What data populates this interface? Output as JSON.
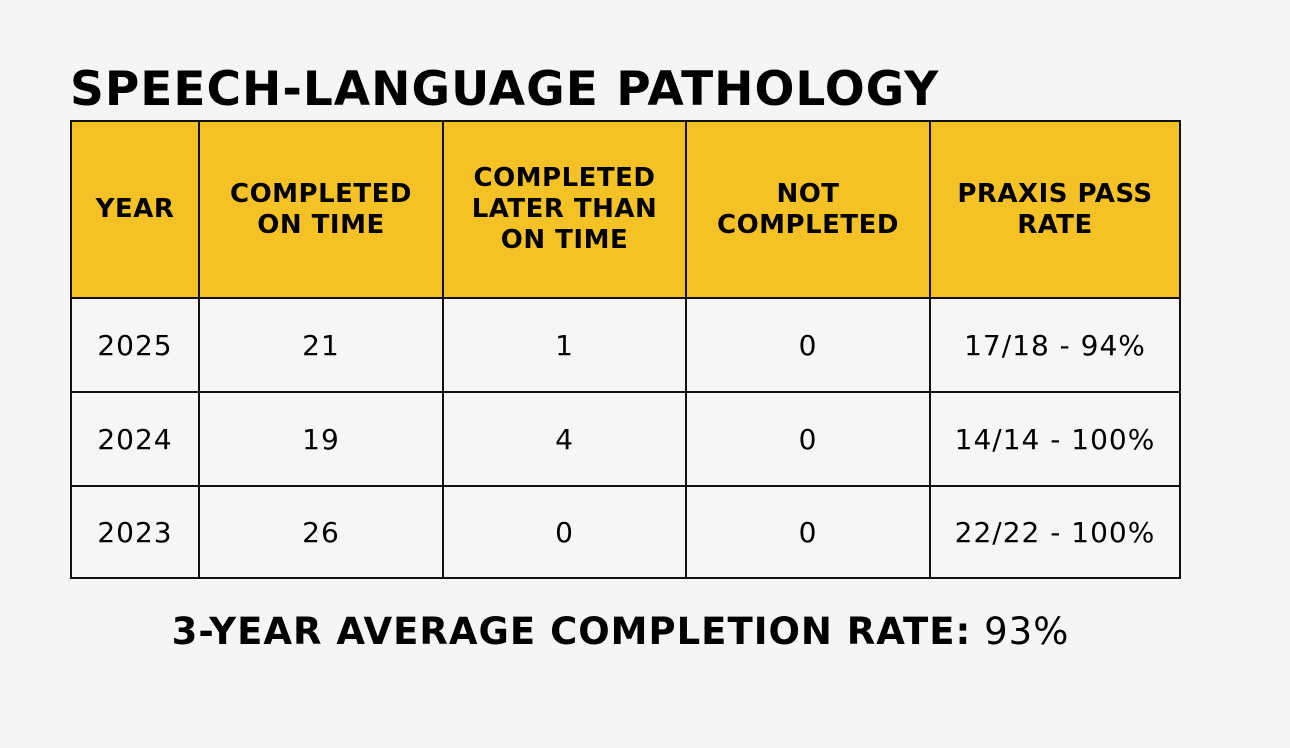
{
  "title": "SPEECH-LANGUAGE PATHOLOGY",
  "colors": {
    "header_background": "#f4c224",
    "page_background": "#f4f5f4",
    "border": "#111111"
  },
  "table": {
    "headers": [
      "YEAR",
      "COMPLETED ON TIME",
      "COMPLETED LATER THAN ON TIME",
      "NOT COMPLETED",
      "PRAXIS PASS RATE"
    ],
    "rows": [
      [
        "2025",
        "21",
        "1",
        "0",
        "17/18 - 94%"
      ],
      [
        "2024",
        "19",
        "4",
        "0",
        "14/14 - 100%"
      ],
      [
        "2023",
        "26",
        "0",
        "0",
        "22/22 - 100%"
      ]
    ]
  },
  "summary": {
    "label": "3-YEAR AVERAGE COMPLETION RATE:",
    "value": "93%"
  }
}
